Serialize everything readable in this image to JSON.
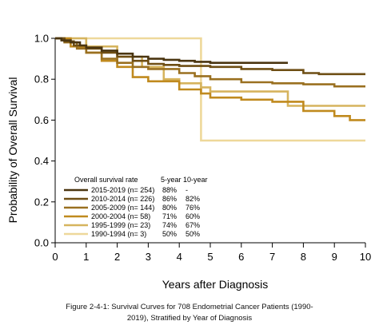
{
  "chart_data": {
    "type": "line",
    "xlabel": "Years after Diagnosis",
    "ylabel": "Probability of Overall Survival",
    "xlim": [
      0,
      10
    ],
    "ylim": [
      0,
      1
    ],
    "x_ticks": [
      0,
      1,
      2,
      3,
      4,
      5,
      6,
      7,
      8,
      9,
      10
    ],
    "y_ticks": [
      "0.0",
      "0.2",
      "0.4",
      "0.6",
      "0.8",
      "1.0"
    ],
    "grid": false,
    "legend": {
      "placement": "lower-left",
      "header": [
        "Overall survival rate",
        "5-year",
        "10-year"
      ]
    },
    "series": [
      {
        "name": "2015-2019 (n= 254)",
        "five_year": "88%",
        "ten_year": "-",
        "color": "#4a3510",
        "points": [
          [
            0,
            1.0
          ],
          [
            0.2,
            0.99
          ],
          [
            0.5,
            0.98
          ],
          [
            0.8,
            0.965
          ],
          [
            1.0,
            0.955
          ],
          [
            1.5,
            0.94
          ],
          [
            2.0,
            0.925
          ],
          [
            2.5,
            0.91
          ],
          [
            3.0,
            0.9
          ],
          [
            3.5,
            0.895
          ],
          [
            4.0,
            0.89
          ],
          [
            4.5,
            0.885
          ],
          [
            5.0,
            0.88
          ],
          [
            6.0,
            0.88
          ],
          [
            7.5,
            0.88
          ]
        ]
      },
      {
        "name": "2010-2014 (n= 226)",
        "five_year": "86%",
        "ten_year": "82%",
        "color": "#6e4e14",
        "points": [
          [
            0,
            1.0
          ],
          [
            0.3,
            0.985
          ],
          [
            0.6,
            0.965
          ],
          [
            1.0,
            0.95
          ],
          [
            1.5,
            0.93
          ],
          [
            2.0,
            0.91
          ],
          [
            2.5,
            0.89
          ],
          [
            3.0,
            0.875
          ],
          [
            3.5,
            0.87
          ],
          [
            4.0,
            0.865
          ],
          [
            5.0,
            0.86
          ],
          [
            6.0,
            0.85
          ],
          [
            7.0,
            0.845
          ],
          [
            8.0,
            0.83
          ],
          [
            8.5,
            0.825
          ],
          [
            10.0,
            0.825
          ]
        ]
      },
      {
        "name": "2005-2009 (n= 144)",
        "five_year": "80%",
        "ten_year": "76%",
        "color": "#9a7020",
        "points": [
          [
            0,
            1.0
          ],
          [
            0.3,
            0.98
          ],
          [
            0.7,
            0.95
          ],
          [
            1.0,
            0.93
          ],
          [
            1.5,
            0.9
          ],
          [
            2.0,
            0.88
          ],
          [
            2.5,
            0.86
          ],
          [
            3.0,
            0.85
          ],
          [
            4.0,
            0.83
          ],
          [
            4.5,
            0.815
          ],
          [
            5.0,
            0.8
          ],
          [
            6.0,
            0.785
          ],
          [
            7.0,
            0.78
          ],
          [
            8.0,
            0.775
          ],
          [
            9.0,
            0.765
          ],
          [
            10.0,
            0.765
          ]
        ]
      },
      {
        "name": "2000-2004 (n= 58)",
        "five_year": "71%",
        "ten_year": "60%",
        "color": "#c08a1e",
        "points": [
          [
            0,
            1.0
          ],
          [
            0.5,
            0.96
          ],
          [
            1.0,
            0.93
          ],
          [
            1.5,
            0.89
          ],
          [
            2.0,
            0.86
          ],
          [
            2.5,
            0.81
          ],
          [
            3.0,
            0.79
          ],
          [
            4.0,
            0.75
          ],
          [
            4.7,
            0.73
          ],
          [
            5.0,
            0.71
          ],
          [
            6.0,
            0.7
          ],
          [
            7.0,
            0.69
          ],
          [
            8.0,
            0.645
          ],
          [
            9.0,
            0.62
          ],
          [
            9.5,
            0.6
          ],
          [
            10.0,
            0.6
          ]
        ]
      },
      {
        "name": "1995-1999 (n= 23)",
        "five_year": "74%",
        "ten_year": "67%",
        "color": "#d6b45e",
        "points": [
          [
            0,
            1.0
          ],
          [
            1.0,
            0.96
          ],
          [
            2.0,
            0.91
          ],
          [
            2.8,
            0.86
          ],
          [
            3.5,
            0.8
          ],
          [
            4.0,
            0.78
          ],
          [
            4.7,
            0.76
          ],
          [
            5.0,
            0.74
          ],
          [
            6.0,
            0.74
          ],
          [
            7.0,
            0.74
          ],
          [
            7.5,
            0.67
          ],
          [
            10.0,
            0.67
          ]
        ]
      },
      {
        "name": "1990-1994 (n= 3)",
        "five_year": "50%",
        "ten_year": "50%",
        "color": "#eed89a",
        "points": [
          [
            0,
            1.0
          ],
          [
            4.7,
            1.0
          ],
          [
            4.7,
            0.5
          ],
          [
            10.0,
            0.5
          ]
        ]
      }
    ]
  },
  "caption": {
    "line1": "Figure 2-4-1: Survival Curves for 708 Endometrial Cancer Patients (1990-",
    "line2": "2019), Stratified by Year of Diagnosis"
  }
}
